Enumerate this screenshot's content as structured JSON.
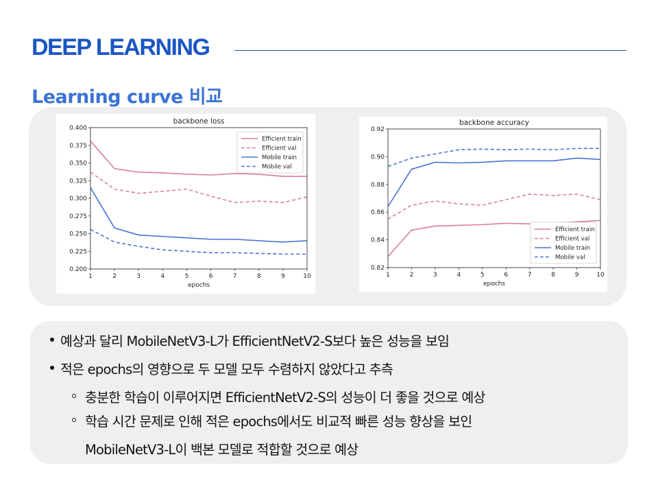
{
  "header": {
    "title": "DEEP LEARNING"
  },
  "subtitle": "Learning curve 비교",
  "chart_data": [
    {
      "type": "line",
      "title": "backbone loss",
      "xlabel": "epochs",
      "ylabel": "",
      "x": [
        1,
        2,
        3,
        4,
        5,
        6,
        7,
        8,
        9,
        10
      ],
      "xlim": [
        1,
        10
      ],
      "ylim": [
        0.2,
        0.4
      ],
      "yticks": [
        "0.200",
        "0.225",
        "0.250",
        "0.275",
        "0.300",
        "0.325",
        "0.350",
        "0.375",
        "0.400"
      ],
      "grid": false,
      "legend": "top-right",
      "series": [
        {
          "name": "Efficient train",
          "color": "#d97e95",
          "dash": false,
          "values": [
            0.381,
            0.342,
            0.337,
            0.336,
            0.334,
            0.333,
            0.335,
            0.334,
            0.331,
            0.331
          ]
        },
        {
          "name": "Efficient val",
          "color": "#d97e95",
          "dash": true,
          "values": [
            0.337,
            0.313,
            0.307,
            0.31,
            0.313,
            0.303,
            0.294,
            0.296,
            0.294,
            0.302
          ]
        },
        {
          "name": "Mobile train",
          "color": "#4a72d4",
          "dash": false,
          "values": [
            0.315,
            0.258,
            0.248,
            0.246,
            0.244,
            0.242,
            0.242,
            0.24,
            0.238,
            0.24
          ]
        },
        {
          "name": "Mobile val",
          "color": "#4a72d4",
          "dash": true,
          "values": [
            0.256,
            0.238,
            0.232,
            0.227,
            0.225,
            0.223,
            0.223,
            0.222,
            0.221,
            0.221
          ]
        }
      ]
    },
    {
      "type": "line",
      "title": "backbone accuracy",
      "xlabel": "epochs",
      "ylabel": "",
      "x": [
        1,
        2,
        3,
        4,
        5,
        6,
        7,
        8,
        9,
        10
      ],
      "xlim": [
        1,
        10
      ],
      "ylim": [
        0.82,
        0.92
      ],
      "yticks": [
        "0.82",
        "0.84",
        "0.86",
        "0.88",
        "0.90",
        "0.92"
      ],
      "grid": false,
      "legend": "bottom-right",
      "series": [
        {
          "name": "Efficient train",
          "color": "#d97e95",
          "dash": false,
          "values": [
            0.828,
            0.847,
            0.85,
            0.8505,
            0.851,
            0.852,
            0.8515,
            0.852,
            0.853,
            0.854
          ]
        },
        {
          "name": "Efficient val",
          "color": "#d97e95",
          "dash": true,
          "values": [
            0.855,
            0.865,
            0.868,
            0.866,
            0.865,
            0.869,
            0.873,
            0.872,
            0.873,
            0.869
          ]
        },
        {
          "name": "Mobile train",
          "color": "#4a72d4",
          "dash": false,
          "values": [
            0.864,
            0.891,
            0.896,
            0.8955,
            0.896,
            0.897,
            0.897,
            0.897,
            0.899,
            0.898
          ]
        },
        {
          "name": "Mobile val",
          "color": "#4a72d4",
          "dash": true,
          "values": [
            0.893,
            0.899,
            0.902,
            0.905,
            0.9055,
            0.905,
            0.9055,
            0.905,
            0.906,
            0.906
          ]
        }
      ]
    }
  ],
  "bullets": [
    {
      "level": 1,
      "text": "예상과 달리 MobileNetV3-L가 EfficientNetV2-S보다 높은 성능을 보임"
    },
    {
      "level": 1,
      "text": "적은 epochs의 영향으로 두 모델 모두 수렴하지 않았다고 추측"
    },
    {
      "level": 2,
      "text": "충분한 학습이 이루어지면 EfficientNetV2-S의 성능이 더 좋을 것으로 예상"
    },
    {
      "level": 2,
      "text": "학습 시간 문제로 인해 적은 epochs에서도 비교적 빠른 성능 향상을 보인"
    },
    {
      "level": 3,
      "text": "MobileNetV3-L이 백본 모델로 적합할 것으로 예상"
    }
  ]
}
